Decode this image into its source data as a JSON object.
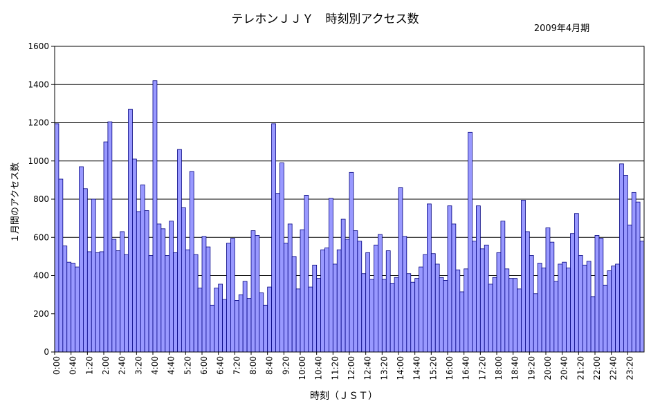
{
  "chart_data": {
    "type": "bar",
    "title": "テレホンＪＪＹ　時刻別アクセス数",
    "subtitle": "2009年4月期",
    "xlabel": "時刻（ＪＳＴ）",
    "ylabel": "１月間のアクセス数",
    "ylim": [
      0,
      1600
    ],
    "yticks": [
      0,
      200,
      400,
      600,
      800,
      1000,
      1200,
      1400,
      1600
    ],
    "grid": true,
    "bar_color": "#9999ff",
    "bar_edge_color": "#000080",
    "xtick_labels": [
      "0:00",
      "0:40",
      "1:20",
      "2:00",
      "2:40",
      "3:20",
      "4:00",
      "4:40",
      "5:20",
      "6:00",
      "6:40",
      "7:20",
      "8:00",
      "8:40",
      "9:20",
      "10:00",
      "10:40",
      "11:20",
      "12:00",
      "12:40",
      "13:20",
      "14:00",
      "14:40",
      "15:20",
      "16:00",
      "16:40",
      "17:20",
      "18:00",
      "18:40",
      "19:20",
      "20:00",
      "20:40",
      "21:20",
      "22:00",
      "22:40",
      "23:20"
    ],
    "values": [
      1195,
      905,
      555,
      470,
      465,
      445,
      970,
      855,
      525,
      800,
      520,
      525,
      1100,
      1205,
      590,
      530,
      630,
      510,
      1270,
      1010,
      735,
      875,
      740,
      505,
      1420,
      670,
      645,
      505,
      685,
      520,
      1060,
      755,
      535,
      945,
      510,
      335,
      605,
      550,
      245,
      335,
      355,
      275,
      570,
      595,
      270,
      300,
      370,
      280,
      635,
      610,
      310,
      245,
      340,
      1195,
      830,
      990,
      570,
      670,
      500,
      330,
      640,
      820,
      340,
      455,
      385,
      535,
      545,
      805,
      460,
      535,
      695,
      590,
      940,
      635,
      580,
      410,
      520,
      380,
      560,
      615,
      380,
      530,
      360,
      390,
      860,
      605,
      410,
      365,
      385,
      445,
      510,
      775,
      515,
      460,
      390,
      375,
      765,
      670,
      430,
      315,
      435,
      1150,
      580,
      765,
      540,
      560,
      355,
      390,
      520,
      685,
      435,
      385,
      385,
      330,
      795,
      630,
      505,
      305,
      465,
      440,
      650,
      575,
      370,
      460,
      470,
      440,
      620,
      725,
      505,
      455,
      475,
      290,
      610,
      595,
      350,
      425,
      450,
      460,
      985,
      925,
      665,
      835,
      785,
      580
    ]
  }
}
